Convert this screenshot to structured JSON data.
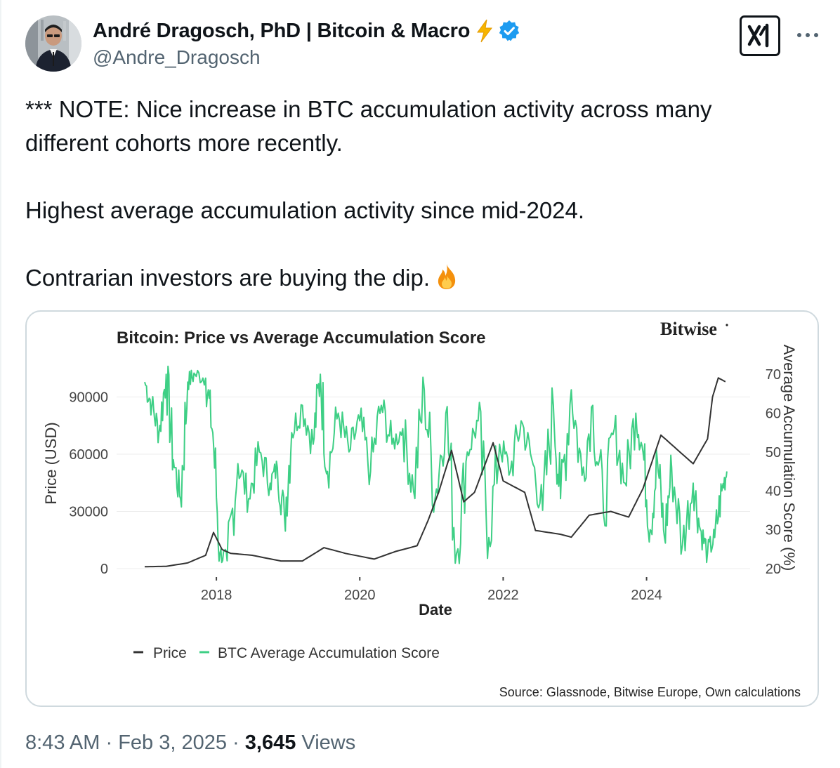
{
  "author": {
    "display_name": "André Dragosch, PhD | Bitcoin & Macro",
    "handle": "@Andre_Dragosch",
    "avatar_icon": "avatar-photo",
    "emoji_icon": "lightning-bolt-icon",
    "badge_icon": "verified-badge-icon",
    "badge_color": "#1d9bf0"
  },
  "header_actions": {
    "logo_icon": "xai-grok-icon",
    "more_icon": "more-icon"
  },
  "tweet": {
    "paragraphs": [
      "*** NOTE: Nice increase in BTC accumulation activity across many\ndifferent cohorts more recently.",
      "Highest average accumulation activity since mid-2024.",
      "Contrarian investors are buying the dip."
    ],
    "emoji": "fire-emoji-icon"
  },
  "chart_data": {
    "type": "line",
    "title": "Bitcoin: Price vs Average Accumulation Score",
    "brand": "Bitwise",
    "xlabel": "Date",
    "ylabel": "Price (USD)",
    "y2label": "Average Accumulation Score (%)",
    "x_ticks": [
      "2018",
      "2020",
      "2022",
      "2024"
    ],
    "y_ticks": [
      "0",
      "30000",
      "60000",
      "90000"
    ],
    "y2_ticks": [
      "20",
      "30",
      "40",
      "50",
      "60",
      "70"
    ],
    "xlim": [
      2017.0,
      2025.15
    ],
    "ylim": [
      0,
      106000
    ],
    "y2lim": [
      20,
      72
    ],
    "grid": true,
    "legend_position": "bottom-left",
    "source": "Source: Glassnode, Bitwise Europe, Own calculations",
    "series": [
      {
        "name": "Price",
        "axis": "left",
        "color": "#333333",
        "points": [
          [
            2017.0,
            1000
          ],
          [
            2017.3,
            1200
          ],
          [
            2017.6,
            3000
          ],
          [
            2017.85,
            7000
          ],
          [
            2017.96,
            19000
          ],
          [
            2018.08,
            10000
          ],
          [
            2018.2,
            8000
          ],
          [
            2018.5,
            7000
          ],
          [
            2018.9,
            4000
          ],
          [
            2019.2,
            4000
          ],
          [
            2019.5,
            11000
          ],
          [
            2019.8,
            8000
          ],
          [
            2020.2,
            5000
          ],
          [
            2020.5,
            9000
          ],
          [
            2020.8,
            12000
          ],
          [
            2020.95,
            25000
          ],
          [
            2021.1,
            40000
          ],
          [
            2021.28,
            62000
          ],
          [
            2021.45,
            35000
          ],
          [
            2021.6,
            40000
          ],
          [
            2021.86,
            66000
          ],
          [
            2022.0,
            46000
          ],
          [
            2022.3,
            40000
          ],
          [
            2022.45,
            20000
          ],
          [
            2022.8,
            18000
          ],
          [
            2022.95,
            16500
          ],
          [
            2023.2,
            28000
          ],
          [
            2023.5,
            30000
          ],
          [
            2023.75,
            27000
          ],
          [
            2023.95,
            42000
          ],
          [
            2024.2,
            70000
          ],
          [
            2024.5,
            60000
          ],
          [
            2024.65,
            55000
          ],
          [
            2024.85,
            68000
          ],
          [
            2024.92,
            90000
          ],
          [
            2025.0,
            100000
          ],
          [
            2025.1,
            98000
          ]
        ]
      },
      {
        "name": "BTC Average Accumulation Score",
        "axis": "right",
        "color": "#3ecf85",
        "points": [
          [
            2017.0,
            68
          ],
          [
            2017.1,
            62
          ],
          [
            2017.2,
            55
          ],
          [
            2017.3,
            70
          ],
          [
            2017.4,
            48
          ],
          [
            2017.5,
            38
          ],
          [
            2017.6,
            68
          ],
          [
            2017.7,
            70
          ],
          [
            2017.85,
            69
          ],
          [
            2017.95,
            55
          ],
          [
            2018.05,
            24
          ],
          [
            2018.15,
            22
          ],
          [
            2018.3,
            47
          ],
          [
            2018.45,
            38
          ],
          [
            2018.6,
            50
          ],
          [
            2018.75,
            42
          ],
          [
            2018.85,
            46
          ],
          [
            2018.95,
            33
          ],
          [
            2019.05,
            55
          ],
          [
            2019.2,
            62
          ],
          [
            2019.35,
            52
          ],
          [
            2019.45,
            70
          ],
          [
            2019.55,
            45
          ],
          [
            2019.7,
            60
          ],
          [
            2019.85,
            50
          ],
          [
            2020.0,
            58
          ],
          [
            2020.15,
            45
          ],
          [
            2020.3,
            62
          ],
          [
            2020.45,
            52
          ],
          [
            2020.6,
            56
          ],
          [
            2020.75,
            40
          ],
          [
            2020.9,
            66
          ],
          [
            2021.05,
            38
          ],
          [
            2021.2,
            60
          ],
          [
            2021.35,
            24
          ],
          [
            2021.5,
            50
          ],
          [
            2021.65,
            58
          ],
          [
            2021.8,
            28
          ],
          [
            2021.95,
            52
          ],
          [
            2022.1,
            45
          ],
          [
            2022.25,
            58
          ],
          [
            2022.4,
            48
          ],
          [
            2022.55,
            35
          ],
          [
            2022.7,
            62
          ],
          [
            2022.8,
            38
          ],
          [
            2022.95,
            66
          ],
          [
            2023.1,
            44
          ],
          [
            2023.25,
            62
          ],
          [
            2023.4,
            34
          ],
          [
            2023.55,
            56
          ],
          [
            2023.7,
            42
          ],
          [
            2023.85,
            60
          ],
          [
            2023.95,
            50
          ],
          [
            2024.05,
            30
          ],
          [
            2024.15,
            48
          ],
          [
            2024.25,
            28
          ],
          [
            2024.35,
            46
          ],
          [
            2024.5,
            26
          ],
          [
            2024.65,
            42
          ],
          [
            2024.75,
            30
          ],
          [
            2024.85,
            24
          ],
          [
            2024.95,
            28
          ],
          [
            2025.05,
            40
          ],
          [
            2025.12,
            45
          ]
        ]
      }
    ]
  },
  "footer": {
    "time": "8:43 AM",
    "sep1": " · ",
    "date": "Feb 3, 2025",
    "sep2": " · ",
    "views_count": "3,645",
    "views_label": " Views"
  }
}
